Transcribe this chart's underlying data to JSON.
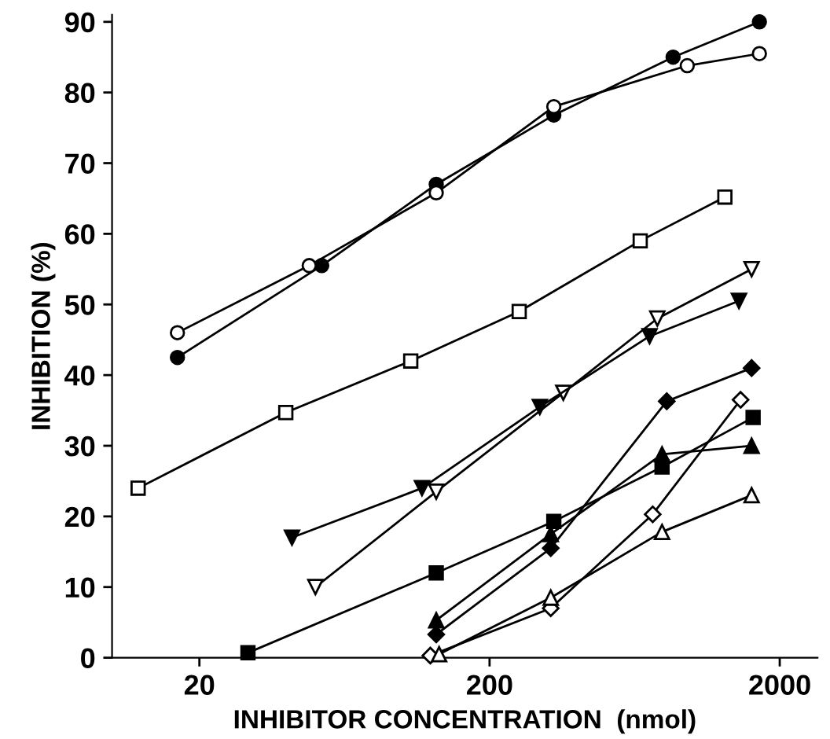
{
  "chart_data": {
    "type": "line",
    "xlabel": "INHIBITOR CONCENTRATION  (nmol)",
    "ylabel": "INHIBITION (%)",
    "log": "x",
    "xlim": [
      10,
      2700
    ],
    "xticks": [
      20,
      200,
      2000
    ],
    "ylim": [
      0,
      91
    ],
    "yticks": [
      0,
      10,
      20,
      30,
      40,
      50,
      60,
      70,
      80,
      90
    ],
    "grid": false,
    "legend": false,
    "line_style": "solid",
    "series": [
      {
        "color": "#000000",
        "marker": "circle",
        "x": [
          16.8,
          52.8,
          131,
          333,
          858,
          1702
        ],
        "values": [
          42.5,
          55.5,
          67,
          76.8,
          85,
          90
        ]
      },
      {
        "color": "#000000",
        "marker": "circle_open",
        "x": [
          16.8,
          47.8,
          131,
          333,
          960,
          1702
        ],
        "values": [
          46,
          55.5,
          65.8,
          78,
          83.8,
          85.5
        ]
      },
      {
        "color": "#000000",
        "marker": "square_open",
        "x": [
          12.3,
          39.7,
          107,
          253,
          661,
          1294
        ],
        "values": [
          24,
          34.7,
          42,
          49,
          59,
          65.2
        ]
      },
      {
        "color": "#000000",
        "marker": "triangle_down_open",
        "x": [
          50.2,
          131,
          359,
          757,
          1600
        ],
        "values": [
          10,
          23.5,
          37.5,
          48,
          55
        ]
      },
      {
        "color": "#000000",
        "marker": "triangle_down",
        "x": [
          41.7,
          117,
          298,
          712,
          1447
        ],
        "values": [
          17,
          24,
          35.5,
          45.5,
          50.5
        ]
      },
      {
        "color": "#000000",
        "marker": "square",
        "x": [
          29.4,
          131,
          333,
          786,
          1619
        ],
        "values": [
          0.7,
          12,
          19.3,
          27,
          34
        ]
      },
      {
        "color": "#000000",
        "marker": "diamond",
        "x": [
          131,
          325,
          816,
          1600
        ],
        "values": [
          3.3,
          15.5,
          36.3,
          41
        ]
      },
      {
        "color": "#000000",
        "marker": "triangle",
        "x": [
          131,
          325,
          786,
          1600
        ],
        "values": [
          5.3,
          17.5,
          28.8,
          30
        ]
      },
      {
        "color": "#000000",
        "marker": "diamond_open",
        "x": [
          125,
          325,
          730,
          1466
        ],
        "values": [
          0.3,
          7,
          20.3,
          36.5
        ]
      },
      {
        "color": "#000000",
        "marker": "triangle_open",
        "x": [
          134,
          325,
          786,
          1600
        ],
        "values": [
          0.5,
          8.5,
          17.8,
          23
        ]
      }
    ]
  }
}
